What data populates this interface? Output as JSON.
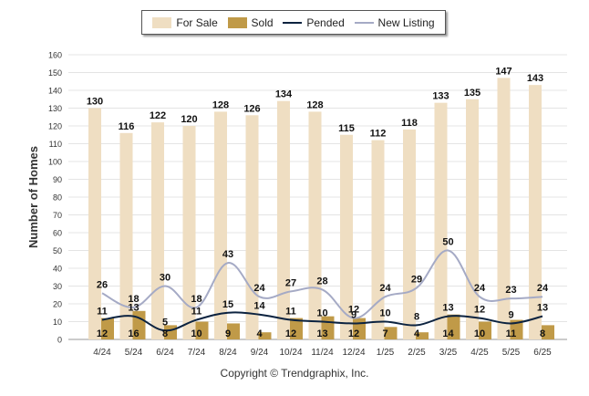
{
  "chart_data": {
    "type": "bar",
    "ylabel": "Number of Homes",
    "ylim": [
      0,
      160
    ],
    "yticks": [
      0,
      10,
      20,
      30,
      40,
      50,
      60,
      70,
      80,
      90,
      100,
      110,
      120,
      130,
      140,
      150,
      160
    ],
    "grid": true,
    "legend_position": "top-center",
    "categories": [
      "4/24",
      "5/24",
      "6/24",
      "7/24",
      "8/24",
      "9/24",
      "10/24",
      "11/24",
      "12/24",
      "1/25",
      "2/25",
      "3/25",
      "4/25",
      "5/25",
      "6/25"
    ],
    "series": [
      {
        "name": "For Sale",
        "type": "bar",
        "color": "#efdec2",
        "values": [
          130,
          116,
          122,
          120,
          128,
          126,
          134,
          128,
          115,
          112,
          118,
          133,
          135,
          147,
          143
        ]
      },
      {
        "name": "Sold",
        "type": "bar",
        "color": "#c09a48",
        "values": [
          12,
          16,
          8,
          10,
          9,
          4,
          12,
          13,
          12,
          7,
          4,
          14,
          10,
          11,
          8
        ]
      },
      {
        "name": "Pended",
        "type": "line",
        "color": "#0c2340",
        "values": [
          11,
          13,
          5,
          11,
          15,
          14,
          11,
          10,
          9,
          10,
          8,
          13,
          12,
          9,
          13
        ]
      },
      {
        "name": "New Listing",
        "type": "line",
        "color": "#a5aac5",
        "values": [
          26,
          18,
          30,
          18,
          43,
          24,
          27,
          28,
          12,
          24,
          29,
          50,
          24,
          23,
          24
        ]
      }
    ]
  },
  "footer": {
    "copyright": "Copyright © Trendgraphix, Inc."
  }
}
